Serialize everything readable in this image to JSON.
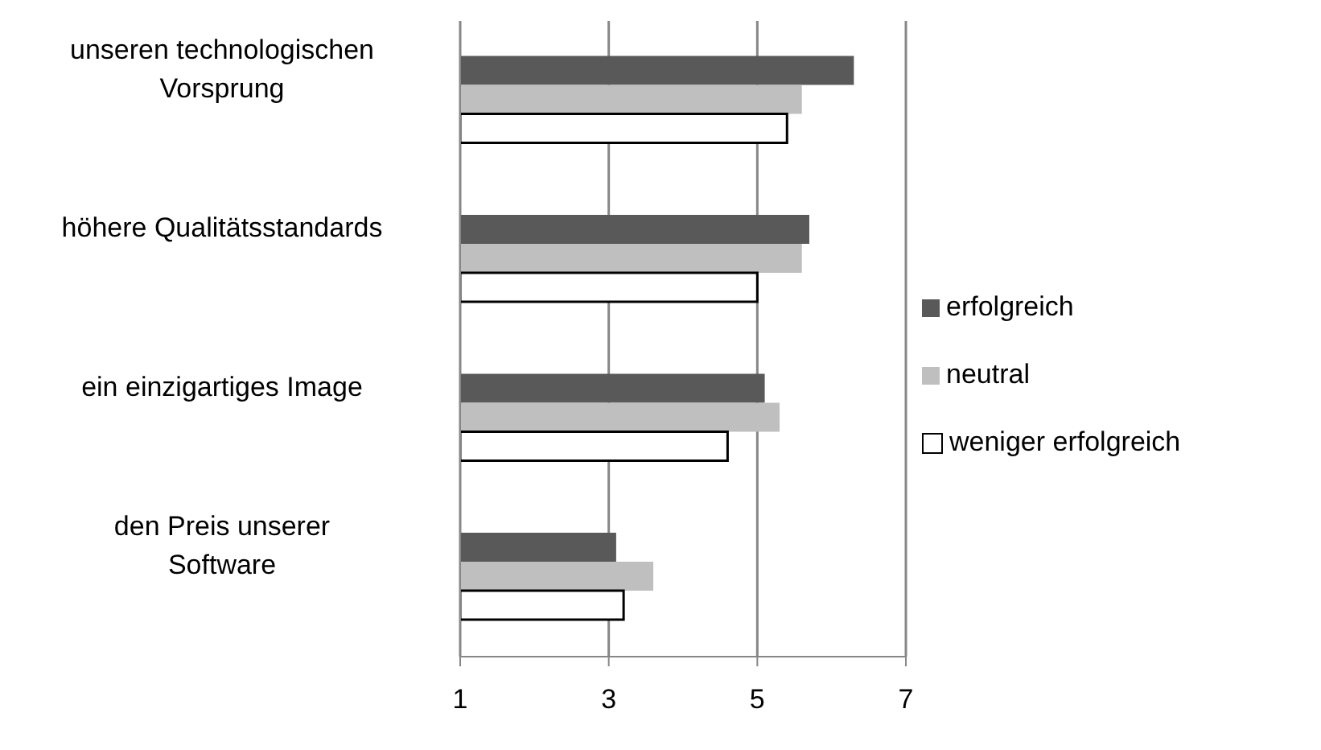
{
  "chart_data": {
    "type": "bar",
    "orientation": "horizontal",
    "categories": [
      "unseren technologischen Vorsprung",
      "höhere Qualitätsstandards",
      "ein einzigartiges Image",
      "den Preis unserer Software"
    ],
    "series": [
      {
        "name": "erfolgreich",
        "color": "#595959",
        "values": [
          6.3,
          5.7,
          5.1,
          3.1
        ]
      },
      {
        "name": "neutral",
        "color": "#bfbfbf",
        "values": [
          5.6,
          5.6,
          5.3,
          3.6
        ]
      },
      {
        "name": "weniger erfolgreich",
        "color": "#ffffff",
        "values": [
          5.4,
          5.0,
          4.6,
          3.2
        ]
      }
    ],
    "xlim": [
      1,
      7
    ],
    "xticks": [
      1,
      3,
      5,
      7
    ],
    "grid": "x",
    "legend": "right"
  }
}
